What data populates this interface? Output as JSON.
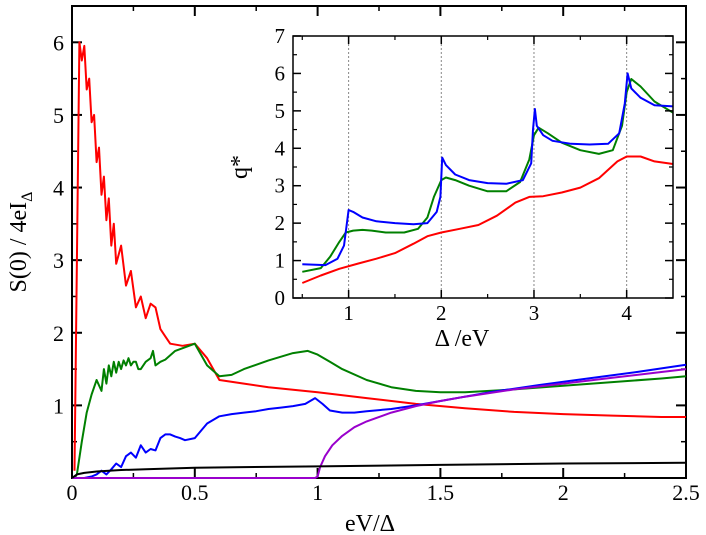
{
  "chart_data": [
    {
      "type": "line",
      "name": "main",
      "xlabel": "eV/Δ",
      "ylabel_main": "S(0) / 4eI",
      "ylabel_sub": "Δ",
      "xlim": [
        0,
        2.5
      ],
      "ylim": [
        0,
        6.5
      ],
      "xticks": [
        0,
        0.5,
        1,
        1.5,
        2,
        2.5
      ],
      "xtick_labels": [
        "0",
        "0.5",
        "1",
        "1.5",
        "2",
        "2.5"
      ],
      "yticks": [
        1,
        2,
        3,
        4,
        5,
        6
      ],
      "ytick_labels": [
        "1",
        "2",
        "3",
        "4",
        "5",
        "6"
      ],
      "series": [
        {
          "name": "red",
          "color": "#ff0000",
          "x": [
            0.01,
            0.03,
            0.04,
            0.05,
            0.06,
            0.07,
            0.08,
            0.09,
            0.1,
            0.11,
            0.12,
            0.13,
            0.14,
            0.15,
            0.16,
            0.17,
            0.18,
            0.2,
            0.22,
            0.24,
            0.26,
            0.28,
            0.3,
            0.32,
            0.34,
            0.36,
            0.38,
            0.4,
            0.45,
            0.5,
            0.55,
            0.6,
            0.7,
            0.8,
            1.0,
            1.2,
            1.4,
            1.6,
            1.8,
            2.0,
            2.2,
            2.4,
            2.5
          ],
          "y": [
            0.1,
            6.0,
            5.75,
            5.95,
            5.35,
            5.5,
            4.9,
            5.0,
            4.35,
            4.55,
            3.9,
            4.15,
            3.55,
            3.85,
            3.2,
            3.5,
            2.95,
            3.2,
            2.65,
            2.85,
            2.35,
            2.5,
            2.2,
            2.4,
            2.35,
            2.05,
            1.95,
            1.85,
            1.82,
            1.85,
            1.65,
            1.35,
            1.3,
            1.25,
            1.18,
            1.1,
            1.02,
            0.96,
            0.91,
            0.88,
            0.86,
            0.84,
            0.84
          ]
        },
        {
          "name": "green",
          "color": "#008000",
          "x": [
            0.01,
            0.02,
            0.04,
            0.06,
            0.08,
            0.1,
            0.12,
            0.13,
            0.14,
            0.15,
            0.16,
            0.17,
            0.18,
            0.19,
            0.2,
            0.21,
            0.22,
            0.23,
            0.24,
            0.25,
            0.26,
            0.27,
            0.28,
            0.3,
            0.32,
            0.33,
            0.34,
            0.36,
            0.38,
            0.42,
            0.46,
            0.5,
            0.55,
            0.6,
            0.65,
            0.7,
            0.8,
            0.9,
            0.96,
            1.0,
            1.05,
            1.1,
            1.2,
            1.3,
            1.4,
            1.5,
            1.6,
            1.8,
            2.0,
            2.2,
            2.4,
            2.5
          ],
          "y": [
            0,
            0.05,
            0.5,
            0.9,
            1.15,
            1.35,
            1.2,
            1.5,
            1.3,
            1.55,
            1.4,
            1.6,
            1.45,
            1.6,
            1.5,
            1.62,
            1.55,
            1.65,
            1.55,
            1.6,
            1.6,
            1.5,
            1.5,
            1.6,
            1.65,
            1.75,
            1.55,
            1.6,
            1.63,
            1.75,
            1.8,
            1.85,
            1.55,
            1.4,
            1.42,
            1.5,
            1.62,
            1.72,
            1.75,
            1.7,
            1.6,
            1.5,
            1.35,
            1.25,
            1.2,
            1.18,
            1.18,
            1.22,
            1.27,
            1.32,
            1.37,
            1.4
          ]
        },
        {
          "name": "blue",
          "color": "#0000ff",
          "x": [
            0.05,
            0.08,
            0.1,
            0.12,
            0.14,
            0.16,
            0.18,
            0.2,
            0.22,
            0.24,
            0.26,
            0.28,
            0.3,
            0.32,
            0.34,
            0.36,
            0.38,
            0.4,
            0.42,
            0.44,
            0.46,
            0.5,
            0.55,
            0.6,
            0.65,
            0.7,
            0.75,
            0.8,
            0.85,
            0.9,
            0.95,
            0.99,
            1.02,
            1.05,
            1.1,
            1.15,
            1.2,
            1.3,
            1.4,
            1.5,
            1.7,
            1.9,
            2.1,
            2.3,
            2.5
          ],
          "y": [
            0,
            0.02,
            0.05,
            0.1,
            0.05,
            0.12,
            0.2,
            0.15,
            0.3,
            0.35,
            0.28,
            0.45,
            0.35,
            0.4,
            0.38,
            0.55,
            0.6,
            0.6,
            0.57,
            0.55,
            0.52,
            0.55,
            0.75,
            0.85,
            0.88,
            0.9,
            0.92,
            0.95,
            0.97,
            0.99,
            1.02,
            1.1,
            1.02,
            0.93,
            0.9,
            0.9,
            0.92,
            0.95,
            1.0,
            1.06,
            1.18,
            1.28,
            1.37,
            1.46,
            1.56
          ]
        },
        {
          "name": "purple",
          "color": "#9900cc",
          "x": [
            0.0,
            0.5,
            0.99,
            1.0,
            1.01,
            1.03,
            1.06,
            1.1,
            1.15,
            1.2,
            1.3,
            1.4,
            1.5,
            1.6,
            1.8,
            2.0,
            2.2,
            2.4,
            2.5
          ],
          "y": [
            0,
            0,
            0,
            0.02,
            0.15,
            0.3,
            0.45,
            0.58,
            0.7,
            0.78,
            0.9,
            0.99,
            1.06,
            1.12,
            1.22,
            1.3,
            1.38,
            1.46,
            1.5
          ]
        },
        {
          "name": "black",
          "color": "#000000",
          "x": [
            0.0,
            0.02,
            0.05,
            0.1,
            0.2,
            0.3,
            0.5,
            0.7,
            1.0,
            1.5,
            2.0,
            2.5
          ],
          "y": [
            0.0,
            0.05,
            0.07,
            0.09,
            0.11,
            0.12,
            0.14,
            0.15,
            0.16,
            0.18,
            0.2,
            0.21
          ]
        }
      ]
    },
    {
      "type": "line",
      "name": "inset",
      "xlabel": "Δ /eV",
      "ylabel": "q*",
      "xlim": [
        0.4,
        4.5
      ],
      "ylim": [
        0,
        7
      ],
      "xticks": [
        1,
        2,
        3,
        4
      ],
      "xtick_labels": [
        "1",
        "2",
        "3",
        "4"
      ],
      "yticks": [
        0,
        1,
        2,
        3,
        4,
        5,
        6,
        7
      ],
      "ytick_labels": [
        "0",
        "1",
        "2",
        "3",
        "4",
        "5",
        "6",
        "7"
      ],
      "vlines": [
        1,
        2,
        3,
        4
      ],
      "series": [
        {
          "name": "red",
          "color": "#ff0000",
          "x": [
            0.5,
            0.7,
            0.9,
            1.1,
            1.3,
            1.5,
            1.7,
            1.85,
            2.0,
            2.2,
            2.4,
            2.6,
            2.8,
            2.95,
            3.1,
            3.3,
            3.5,
            3.7,
            3.9,
            4.0,
            4.15,
            4.3,
            4.5
          ],
          "y": [
            0.4,
            0.6,
            0.78,
            0.92,
            1.05,
            1.2,
            1.45,
            1.65,
            1.75,
            1.85,
            1.95,
            2.2,
            2.55,
            2.7,
            2.72,
            2.82,
            2.95,
            3.2,
            3.65,
            3.78,
            3.78,
            3.65,
            3.58
          ]
        },
        {
          "name": "green",
          "color": "#008000",
          "x": [
            0.5,
            0.7,
            0.8,
            0.9,
            0.97,
            1.05,
            1.15,
            1.25,
            1.4,
            1.6,
            1.75,
            1.85,
            1.92,
            2.0,
            2.05,
            2.15,
            2.3,
            2.5,
            2.7,
            2.85,
            2.95,
            3.0,
            3.05,
            3.15,
            3.3,
            3.5,
            3.7,
            3.85,
            3.95,
            4.0,
            4.05,
            4.15,
            4.3,
            4.5
          ],
          "y": [
            0.7,
            0.8,
            1.1,
            1.5,
            1.75,
            1.8,
            1.82,
            1.8,
            1.75,
            1.75,
            1.85,
            2.15,
            2.7,
            3.15,
            3.22,
            3.15,
            3.0,
            2.85,
            2.85,
            3.1,
            3.7,
            4.35,
            4.55,
            4.4,
            4.15,
            3.95,
            3.85,
            3.95,
            4.6,
            5.5,
            5.85,
            5.65,
            5.25,
            4.95
          ]
        },
        {
          "name": "blue",
          "color": "#0000ff",
          "x": [
            0.5,
            0.75,
            0.88,
            0.95,
            1.0,
            1.05,
            1.15,
            1.3,
            1.5,
            1.7,
            1.85,
            1.95,
            1.99,
            2.01,
            2.05,
            2.15,
            2.3,
            2.5,
            2.7,
            2.88,
            2.97,
            2.99,
            3.01,
            3.03,
            3.1,
            3.2,
            3.4,
            3.6,
            3.8,
            3.92,
            3.98,
            4.01,
            4.05,
            4.15,
            4.3,
            4.5
          ],
          "y": [
            0.9,
            0.88,
            1.05,
            1.4,
            2.35,
            2.3,
            2.15,
            2.05,
            2.0,
            1.97,
            2.0,
            2.3,
            2.7,
            3.75,
            3.55,
            3.3,
            3.15,
            3.07,
            3.05,
            3.15,
            3.6,
            4.5,
            5.05,
            4.6,
            4.35,
            4.2,
            4.12,
            4.1,
            4.12,
            4.4,
            5.2,
            6.0,
            5.6,
            5.35,
            5.15,
            5.12
          ]
        }
      ]
    }
  ]
}
